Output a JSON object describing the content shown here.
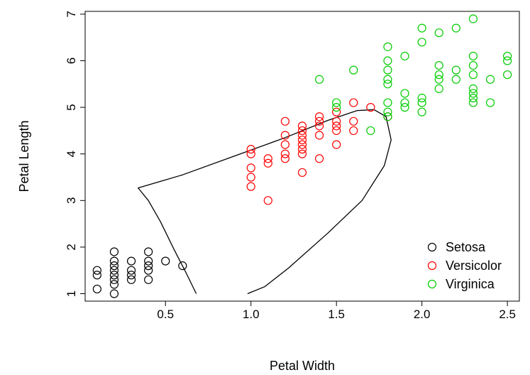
{
  "chart_data": {
    "type": "scatter",
    "xlabel": "Petal Width",
    "ylabel": "Petal Length",
    "xlim": [
      0.03,
      2.57
    ],
    "ylim": [
      0.84,
      7.06
    ],
    "xticks": [
      "0.5",
      "1.0",
      "1.5",
      "2.0",
      "2.5"
    ],
    "xtick_values": [
      0.5,
      1.0,
      1.5,
      2.0,
      2.5
    ],
    "yticks": [
      "1",
      "2",
      "3",
      "4",
      "5",
      "6",
      "7"
    ],
    "ytick_values": [
      1,
      2,
      3,
      4,
      5,
      6,
      7
    ],
    "grid": false,
    "legend_position": "bottom-right",
    "series": [
      {
        "name": "Setosa",
        "color": "#000000",
        "marker": "open-circle",
        "points": [
          [
            0.1,
            1.5
          ],
          [
            0.1,
            1.4
          ],
          [
            0.1,
            1.1
          ],
          [
            0.2,
            1.9
          ],
          [
            0.2,
            1.7
          ],
          [
            0.2,
            1.6
          ],
          [
            0.2,
            1.5
          ],
          [
            0.2,
            1.4
          ],
          [
            0.2,
            1.3
          ],
          [
            0.2,
            1.2
          ],
          [
            0.2,
            1.0
          ],
          [
            0.3,
            1.7
          ],
          [
            0.3,
            1.5
          ],
          [
            0.3,
            1.4
          ],
          [
            0.3,
            1.3
          ],
          [
            0.4,
            1.9
          ],
          [
            0.4,
            1.7
          ],
          [
            0.4,
            1.6
          ],
          [
            0.4,
            1.5
          ],
          [
            0.4,
            1.3
          ],
          [
            0.5,
            1.7
          ],
          [
            0.6,
            1.6
          ]
        ]
      },
      {
        "name": "Versicolor",
        "color": "#ff0000",
        "marker": "open-circle",
        "points": [
          [
            1.0,
            4.1
          ],
          [
            1.0,
            4.0
          ],
          [
            1.0,
            3.7
          ],
          [
            1.0,
            3.5
          ],
          [
            1.0,
            3.3
          ],
          [
            1.1,
            3.9
          ],
          [
            1.1,
            3.8
          ],
          [
            1.1,
            3.0
          ],
          [
            1.2,
            4.7
          ],
          [
            1.2,
            4.4
          ],
          [
            1.2,
            4.2
          ],
          [
            1.2,
            4.0
          ],
          [
            1.2,
            3.9
          ],
          [
            1.3,
            4.6
          ],
          [
            1.3,
            4.5
          ],
          [
            1.3,
            4.4
          ],
          [
            1.3,
            4.3
          ],
          [
            1.3,
            4.2
          ],
          [
            1.3,
            4.1
          ],
          [
            1.3,
            4.0
          ],
          [
            1.3,
            3.6
          ],
          [
            1.4,
            4.8
          ],
          [
            1.4,
            4.7
          ],
          [
            1.4,
            4.6
          ],
          [
            1.4,
            4.4
          ],
          [
            1.4,
            3.9
          ],
          [
            1.5,
            4.9
          ],
          [
            1.5,
            4.7
          ],
          [
            1.5,
            4.6
          ],
          [
            1.5,
            4.5
          ],
          [
            1.5,
            4.2
          ],
          [
            1.6,
            5.1
          ],
          [
            1.6,
            4.7
          ],
          [
            1.6,
            4.5
          ],
          [
            1.7,
            5.0
          ],
          [
            1.8,
            4.8
          ]
        ]
      },
      {
        "name": "Virginica",
        "color": "#00cc00",
        "marker": "open-circle",
        "points": [
          [
            1.4,
            5.6
          ],
          [
            1.5,
            5.1
          ],
          [
            1.5,
            5.0
          ],
          [
            1.6,
            5.8
          ],
          [
            1.7,
            4.5
          ],
          [
            1.8,
            6.3
          ],
          [
            1.8,
            6.0
          ],
          [
            1.8,
            5.8
          ],
          [
            1.8,
            5.6
          ],
          [
            1.8,
            5.5
          ],
          [
            1.8,
            5.1
          ],
          [
            1.8,
            4.9
          ],
          [
            1.8,
            4.8
          ],
          [
            1.9,
            6.1
          ],
          [
            1.9,
            5.3
          ],
          [
            1.9,
            5.1
          ],
          [
            1.9,
            5.0
          ],
          [
            2.0,
            6.7
          ],
          [
            2.0,
            6.4
          ],
          [
            2.0,
            5.2
          ],
          [
            2.0,
            5.1
          ],
          [
            2.0,
            4.9
          ],
          [
            2.1,
            6.6
          ],
          [
            2.1,
            5.9
          ],
          [
            2.1,
            5.7
          ],
          [
            2.1,
            5.6
          ],
          [
            2.1,
            5.4
          ],
          [
            2.2,
            6.7
          ],
          [
            2.2,
            5.8
          ],
          [
            2.2,
            5.6
          ],
          [
            2.3,
            6.9
          ],
          [
            2.3,
            6.1
          ],
          [
            2.3,
            5.9
          ],
          [
            2.3,
            5.7
          ],
          [
            2.3,
            5.4
          ],
          [
            2.3,
            5.3
          ],
          [
            2.3,
            5.2
          ],
          [
            2.3,
            5.1
          ],
          [
            2.4,
            5.6
          ],
          [
            2.4,
            5.1
          ],
          [
            2.5,
            6.1
          ],
          [
            2.5,
            6.0
          ],
          [
            2.5,
            5.7
          ]
        ]
      }
    ],
    "curves": [
      {
        "name": "boundary-curve",
        "color": "#000000",
        "points": [
          [
            0.68,
            1.0
          ],
          [
            0.62,
            1.45
          ],
          [
            0.55,
            1.95
          ],
          [
            0.47,
            2.55
          ],
          [
            0.4,
            3.0
          ],
          [
            0.34,
            3.27
          ],
          [
            0.6,
            3.55
          ],
          [
            0.9,
            3.95
          ],
          [
            1.2,
            4.35
          ],
          [
            1.45,
            4.72
          ],
          [
            1.62,
            4.93
          ],
          [
            1.72,
            4.95
          ],
          [
            1.79,
            4.8
          ],
          [
            1.82,
            4.3
          ],
          [
            1.78,
            3.75
          ],
          [
            1.65,
            3.0
          ],
          [
            1.45,
            2.3
          ],
          [
            1.22,
            1.55
          ],
          [
            1.08,
            1.15
          ],
          [
            0.98,
            1.0
          ]
        ]
      }
    ]
  }
}
